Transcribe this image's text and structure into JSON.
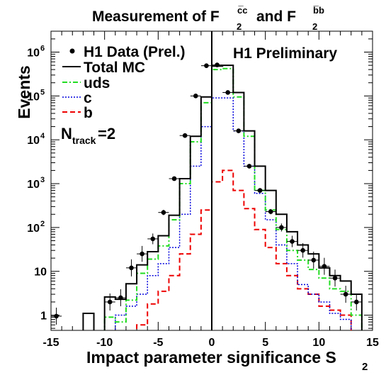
{
  "chart_data": {
    "type": "step",
    "title_prefix": "Measurement of F",
    "title_cc_sup": "c̅c",
    "title_and": "and F",
    "title_bb_sup": "b̅b",
    "title_sub": "2",
    "ylabel": "Events",
    "xlabel": "Impact parameter significance S",
    "xlabel_sub": "2",
    "annotation": "H1 Preliminary",
    "ntrack_main": "N",
    "ntrack_sub": "track",
    "ntrack_value": "=2",
    "y_scale": "log",
    "xlim": [
      -15,
      15
    ],
    "ylim": [
      0.45,
      3000000
    ],
    "x_ticks": [
      -15,
      -10,
      -5,
      0,
      5,
      10,
      15
    ],
    "y_ticks": [
      {
        "value": 1,
        "base": "1",
        "exp": ""
      },
      {
        "value": 10,
        "base": "10",
        "exp": ""
      },
      {
        "value": 100,
        "base": "10",
        "exp": "2"
      },
      {
        "value": 1000,
        "base": "10",
        "exp": "3"
      },
      {
        "value": 10000,
        "base": "10",
        "exp": "4"
      },
      {
        "value": 100000,
        "base": "10",
        "exp": "5"
      },
      {
        "value": 1000000,
        "base": "10",
        "exp": "6"
      }
    ],
    "bin_edges": [
      -15,
      -14,
      -13,
      -12,
      -11,
      -10,
      -9,
      -8,
      -7,
      -6,
      -5,
      -4,
      -3,
      -2,
      -1,
      0,
      1,
      2,
      3,
      4,
      5,
      6,
      7,
      8,
      9,
      10,
      11,
      12,
      13,
      14,
      15
    ],
    "series": [
      {
        "name": "Total MC",
        "color": "#000000",
        "dash": "solid",
        "values": [
          0,
          0,
          0,
          1.1,
          0,
          2.6,
          2.3,
          5.2,
          14,
          28,
          65,
          190,
          1300,
          12000,
          95000,
          480000,
          500000,
          120000,
          16000,
          2500,
          700,
          200,
          80,
          40,
          25,
          12,
          8,
          6,
          3,
          0
        ]
      },
      {
        "name": "uds",
        "color": "#22dd22",
        "dash": "dashdot",
        "values": [
          0,
          0,
          0,
          0,
          0,
          0.9,
          0.7,
          2.2,
          9,
          19,
          38,
          150,
          1000,
          9000,
          70000,
          400000,
          420000,
          95000,
          12000,
          700,
          250,
          90,
          30,
          18,
          11,
          7,
          4,
          3.5,
          1,
          0
        ]
      },
      {
        "name": "c",
        "color": "#0000dd",
        "dash": "dotted",
        "values": [
          0,
          0,
          0,
          0,
          0,
          0,
          1,
          1.6,
          3,
          8,
          15,
          35,
          200,
          2500,
          20000,
          90000,
          90000,
          16000,
          2500,
          600,
          150,
          40,
          15,
          5,
          3,
          2,
          1.1,
          0.8,
          0,
          0
        ]
      },
      {
        "name": "b",
        "color": "#ee0000",
        "dash": "dashed",
        "values": [
          0,
          0,
          0,
          0,
          0,
          0,
          0,
          0,
          0.6,
          1.8,
          3.5,
          8,
          25,
          70,
          250,
          1100,
          2000,
          700,
          270,
          90,
          35,
          15,
          8,
          4,
          3,
          1.6,
          1.3,
          1,
          0,
          0
        ]
      }
    ],
    "data_points": {
      "name": "H1 Data (Prel.)",
      "x": [
        -14.5,
        -9.5,
        -8.5,
        -7.5,
        -6.5,
        -5.5,
        -4.5,
        -3.5,
        -2.5,
        -1.5,
        -0.5,
        0.5,
        1.5,
        2.5,
        3.5,
        4.5,
        5.5,
        6.5,
        7.5,
        8.5,
        9.5,
        10.5,
        11.5,
        12.5,
        13.5
      ],
      "y": [
        0.95,
        2.0,
        2.5,
        12,
        25,
        55,
        220,
        1300,
        12500,
        100000,
        490000,
        510000,
        120000,
        16000,
        2500,
        700,
        230,
        100,
        48,
        30,
        18,
        13,
        7,
        3,
        2
      ]
    }
  }
}
